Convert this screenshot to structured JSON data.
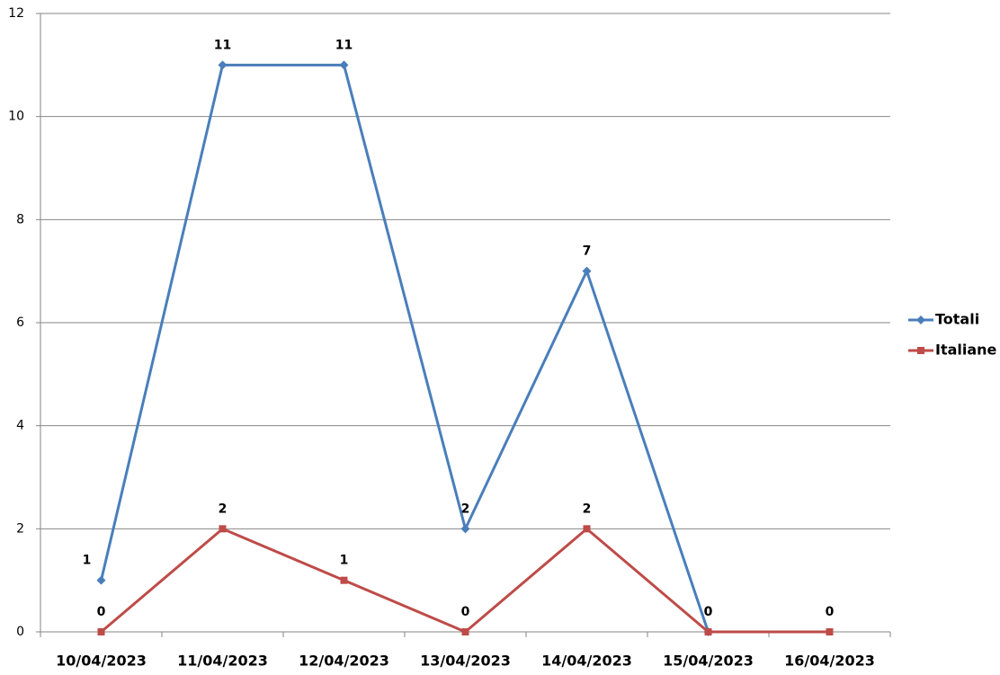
{
  "chart_data": {
    "type": "line",
    "categories": [
      "10/04/2023",
      "11/04/2023",
      "12/04/2023",
      "13/04/2023",
      "14/04/2023",
      "15/04/2023",
      "16/04/2023"
    ],
    "series": [
      {
        "name": "Totali",
        "color": "#4a7ebb",
        "marker": "diamond",
        "values": [
          1,
          11,
          11,
          2,
          7,
          0,
          null
        ]
      },
      {
        "name": "Italiane",
        "color": "#be4b48",
        "marker": "square",
        "values": [
          0,
          2,
          1,
          0,
          2,
          0,
          0
        ]
      }
    ],
    "ylim": [
      0,
      12
    ],
    "yticks": [
      0,
      2,
      4,
      6,
      8,
      10,
      12
    ],
    "grid": true,
    "legend": "right"
  }
}
